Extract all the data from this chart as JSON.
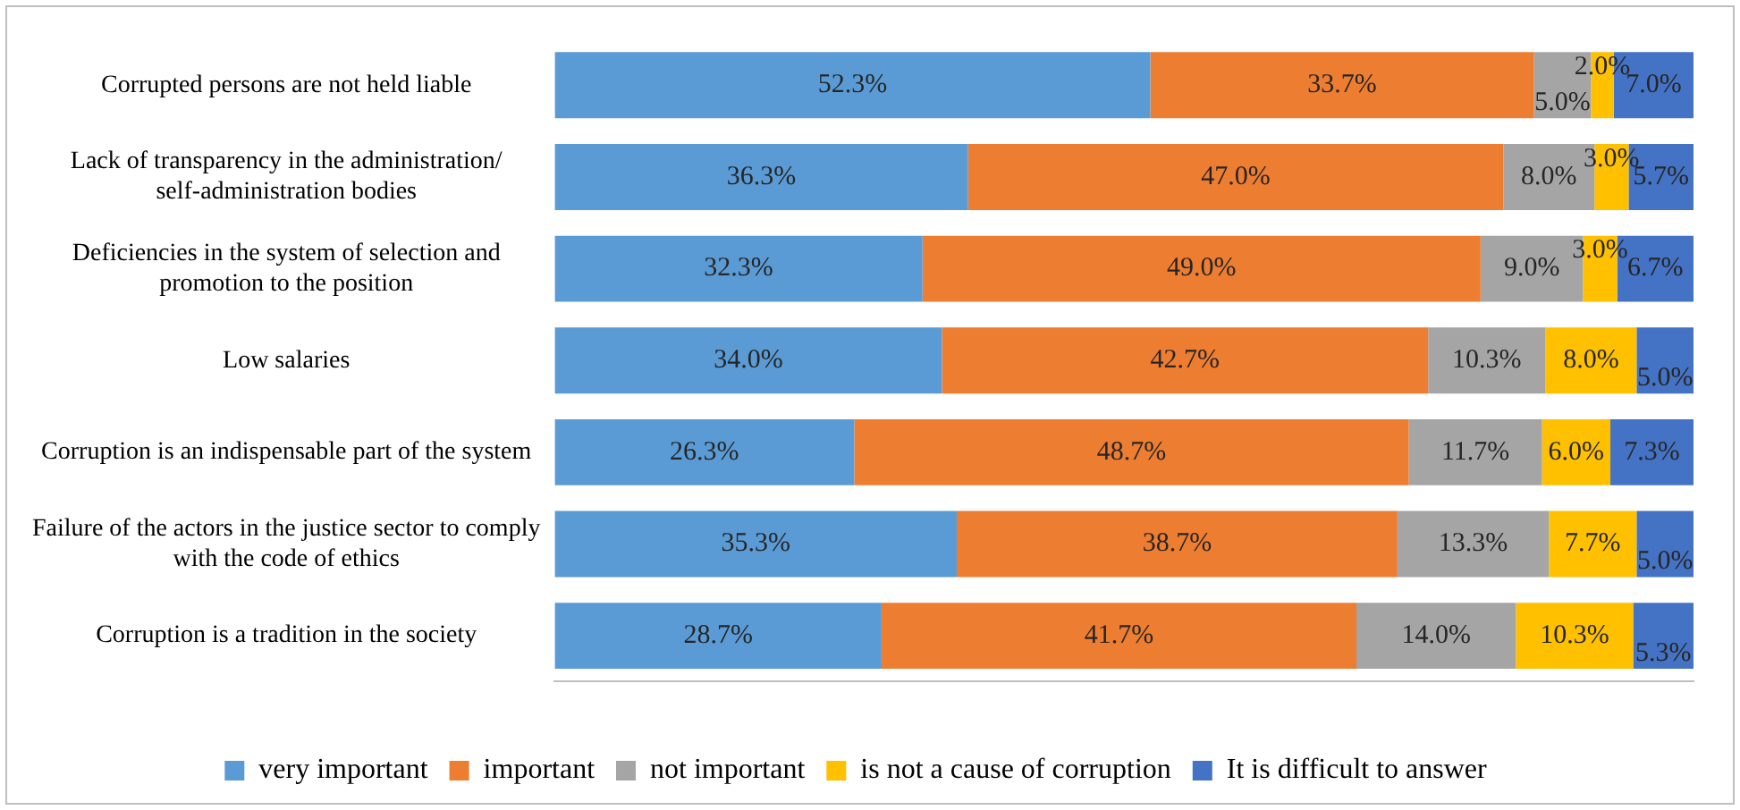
{
  "chart_data": {
    "type": "bar",
    "orientation": "horizontal",
    "stacked": true,
    "categories": [
      "Corrupted persons are not held liable",
      "Lack of transparency in the administration/ self-administration bodies",
      "Deficiencies in the system of selection and promotion to the position",
      "Low salaries",
      "Corruption is an indispensable part of the system",
      "Failure of the actors in the justice sector to comply with the code of ethics",
      "Corruption is a tradition in the society"
    ],
    "series": [
      {
        "name": "very important",
        "color": "#5b9bd5",
        "values": [
          52.3,
          36.3,
          32.3,
          34.0,
          26.3,
          35.3,
          28.7
        ],
        "value_labels": [
          "52.3%",
          "36.3%",
          "32.3%",
          "34.0%",
          "26.3%",
          "35.3%",
          "28.7%"
        ]
      },
      {
        "name": "important",
        "color": "#ed7d31",
        "values": [
          33.7,
          47.0,
          49.0,
          42.7,
          48.7,
          38.7,
          41.7
        ],
        "value_labels": [
          "33.7%",
          "47.0%",
          "49.0%",
          "42.7%",
          "48.7%",
          "38.7%",
          "41.7%"
        ]
      },
      {
        "name": "not important",
        "color": "#a5a5a5",
        "values": [
          5.0,
          8.0,
          9.0,
          10.3,
          11.7,
          13.3,
          14.0
        ],
        "value_labels": [
          "5.0%",
          "8.0%",
          "9.0%",
          "10.3%",
          "11.7%",
          "13.3%",
          "14.0%"
        ]
      },
      {
        "name": "is not a cause of corruption",
        "color": "#ffc000",
        "values": [
          2.0,
          3.0,
          3.0,
          8.0,
          6.0,
          7.7,
          10.3
        ],
        "value_labels": [
          "2.0%",
          "3.0%",
          "3.0%",
          "8.0%",
          "6.0%",
          "7.7%",
          "10.3%"
        ]
      },
      {
        "name": "It is difficult to answer",
        "color": "#4472c4",
        "values": [
          7.0,
          5.7,
          6.7,
          5.0,
          7.3,
          5.0,
          5.3
        ],
        "value_labels": [
          "7.0%",
          "5.7%",
          "6.7%",
          "5.0%",
          "7.3%",
          "5.0%",
          "5.3%"
        ]
      }
    ],
    "grid": false,
    "legend": "bottom"
  }
}
